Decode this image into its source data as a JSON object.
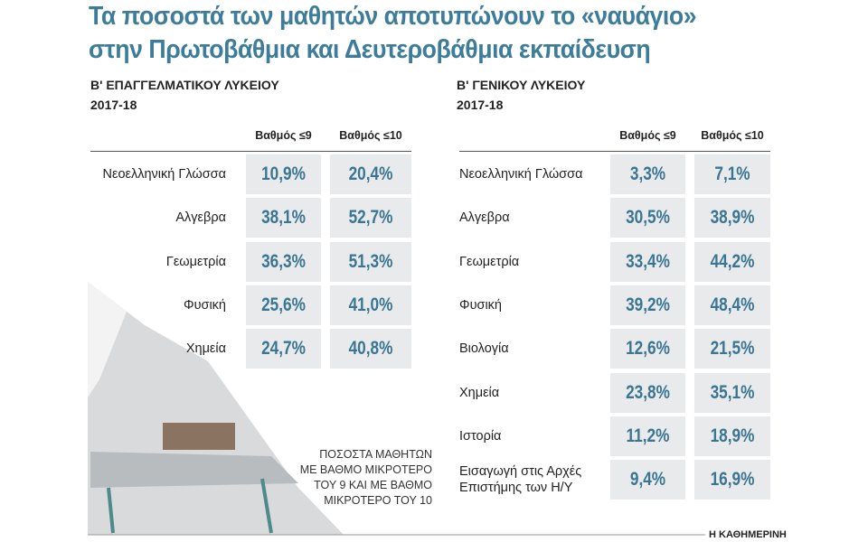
{
  "header": {
    "title_lines": [
      "Τα ποσοστά των μαθητών αποτυπώνουν το «ναυάγιο»",
      "στην Πρωτοβάθμια και Δευτεροβάθμια εκπαίδευση"
    ]
  },
  "tables": [
    {
      "title": "Β' ΕΠΑΓΓΕΛΜΑΤΙΚΟΥ ΛΥΚΕΙΟΥ",
      "year": "2017-18",
      "columns": [
        "Βαθμός ≤9",
        "Βαθμός ≤10"
      ],
      "rows": [
        [
          "Νεοελληνική Γλώσσα",
          "10,9%",
          "20,4%"
        ],
        [
          "Αλγεβρα",
          "38,1%",
          "52,7%"
        ],
        [
          "Γεωμετρία",
          "36,3%",
          "51,3%"
        ],
        [
          "Φυσική",
          "25,6%",
          "41,0%"
        ],
        [
          "Χημεία",
          "24,7%",
          "40,8%"
        ]
      ]
    },
    {
      "title": "Β' ΓΕΝΙΚΟΥ ΛΥΚΕΙΟΥ",
      "year": "2017-18",
      "columns": [
        "Βαθμός ≤9",
        "Βαθμός ≤10"
      ],
      "rows": [
        [
          "Νεοελληνική Γλώσσα",
          "3,3%",
          "7,1%"
        ],
        [
          "Αλγεβρα",
          "30,5%",
          "38,9%"
        ],
        [
          "Γεωμετρία",
          "33,4%",
          "44,2%"
        ],
        [
          "Φυσική",
          "39,2%",
          "48,4%"
        ],
        [
          "Βιολογία",
          "12,6%",
          "21,5%"
        ],
        [
          "Χημεία",
          "23,8%",
          "35,1%"
        ],
        [
          "Ιστορία",
          "11,2%",
          "18,9%"
        ],
        [
          "Εισαγωγή στις Αρχές Επιστήμης των Η/Υ",
          "9,4%",
          "16,9%"
        ]
      ]
    }
  ],
  "caption_lines": [
    "ΠΟΣΟΣΤΑ ΜΑΘΗΤΩΝ",
    "ΜΕ ΒΑΘΜΟ ΜΙΚΡΟΤΕΡΟ",
    "ΤΟΥ 9 ΚΑΙ ΜΕ ΒΑΘΜΟ",
    "ΜΙΚΡΟΤΕΡΟ ΤΟΥ 10"
  ],
  "footer": {
    "source": "Η ΚΑΘΗΜΕΡΙΝΗ"
  }
}
